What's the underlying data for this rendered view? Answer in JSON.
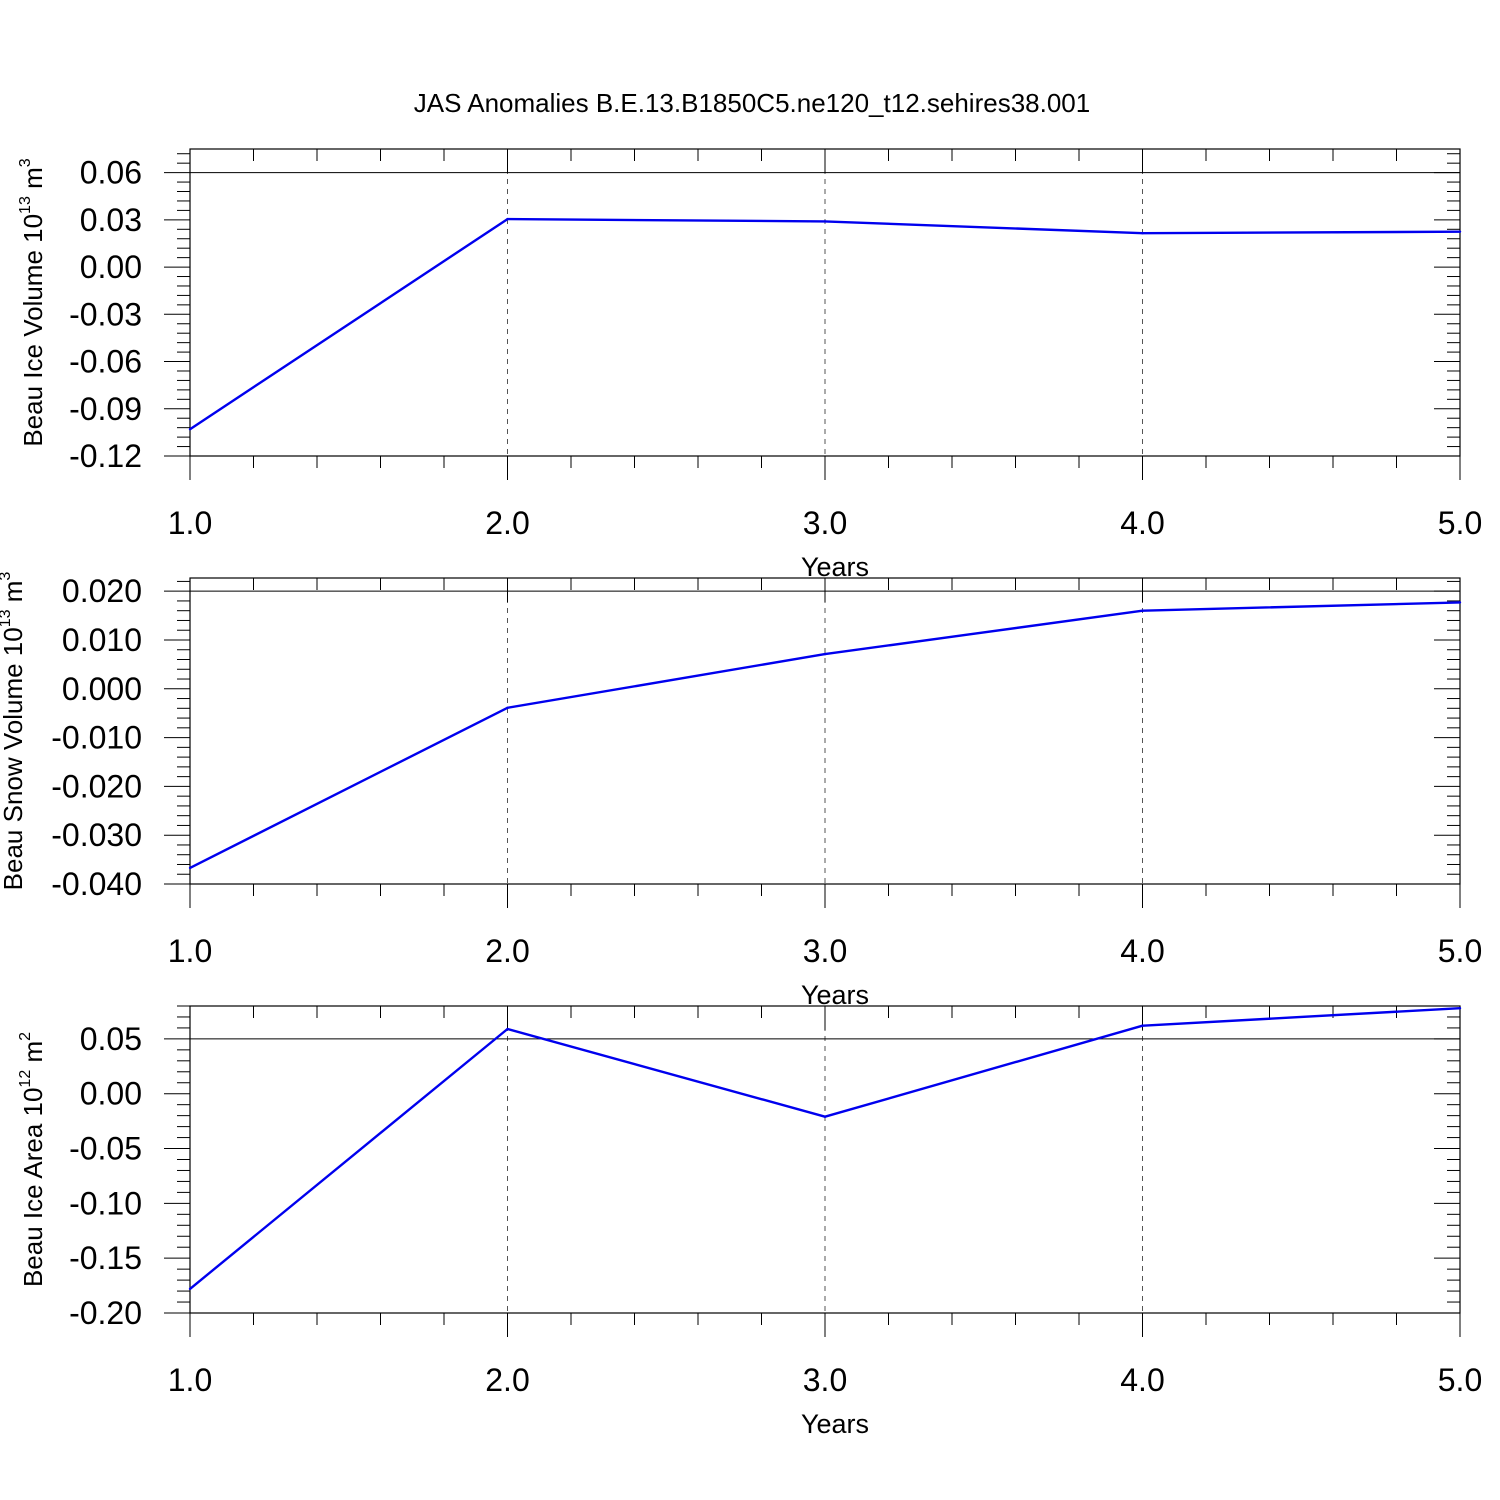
{
  "title": "JAS Anomalies B.E.13.B1850C5.ne120_t12.sehires38.001",
  "colors": {
    "series": "#0000ee",
    "axis": "#000000",
    "grid": "#555555"
  },
  "chart_data": [
    {
      "type": "line",
      "xlabel": "Years",
      "ylabel": {
        "text": "Beau Ice Volume 10",
        "sup": "13",
        "unit": "m",
        "unit_sup": "3"
      },
      "xlim": [
        1.0,
        5.0
      ],
      "ylim": [
        -0.12,
        0.075
      ],
      "xticks": [
        1.0,
        2.0,
        3.0,
        4.0,
        5.0
      ],
      "xtick_labels": [
        "1.0",
        "2.0",
        "3.0",
        "4.0",
        "5.0"
      ],
      "yticks": [
        -0.12,
        -0.09,
        -0.06,
        -0.03,
        0.0,
        0.03,
        0.06
      ],
      "ytick_labels": [
        "-0.12",
        "-0.09",
        "-0.06",
        "-0.03",
        "0.00",
        "0.03",
        "0.06"
      ],
      "y_minor_step": 0.006,
      "grid": "vertical-dashed",
      "x": [
        1.0,
        2.0,
        3.0,
        4.0,
        5.0
      ],
      "values": [
        -0.103,
        0.0305,
        0.029,
        0.0215,
        0.0225
      ]
    },
    {
      "type": "line",
      "xlabel": "Years",
      "ylabel": {
        "text": "Beau Snow Volume 10",
        "sup": "13",
        "unit": "m",
        "unit_sup": "3"
      },
      "xlim": [
        1.0,
        5.0
      ],
      "ylim": [
        -0.04,
        0.0227
      ],
      "xticks": [
        1.0,
        2.0,
        3.0,
        4.0,
        5.0
      ],
      "xtick_labels": [
        "1.0",
        "2.0",
        "3.0",
        "4.0",
        "5.0"
      ],
      "yticks": [
        -0.04,
        -0.03,
        -0.02,
        -0.01,
        0.0,
        0.01,
        0.02
      ],
      "ytick_labels": [
        "-0.040",
        "-0.030",
        "-0.020",
        "-0.010",
        "0.000",
        "0.010",
        "0.020"
      ],
      "y_minor_step": 0.002,
      "grid": "vertical-dashed",
      "x": [
        1.0,
        2.0,
        3.0,
        4.0,
        5.0
      ],
      "values": [
        -0.0367,
        -0.0039,
        0.0071,
        0.016,
        0.0177
      ]
    },
    {
      "type": "line",
      "xlabel": "Years",
      "ylabel": {
        "text": "Beau Ice Area 10",
        "sup": "12",
        "unit": "m",
        "unit_sup": "2"
      },
      "xlim": [
        1.0,
        5.0
      ],
      "ylim": [
        -0.2,
        0.08
      ],
      "xticks": [
        1.0,
        2.0,
        3.0,
        4.0,
        5.0
      ],
      "xtick_labels": [
        "1.0",
        "2.0",
        "3.0",
        "4.0",
        "5.0"
      ],
      "yticks": [
        -0.2,
        -0.15,
        -0.1,
        -0.05,
        0.0,
        0.05
      ],
      "ytick_labels": [
        "-0.20",
        "-0.15",
        "-0.10",
        "-0.05",
        "0.00",
        "0.05"
      ],
      "y_minor_step": 0.01,
      "grid": "vertical-dashed",
      "x": [
        1.0,
        2.0,
        3.0,
        4.0,
        5.0
      ],
      "values": [
        -0.178,
        0.059,
        -0.021,
        0.062,
        0.078
      ]
    }
  ]
}
